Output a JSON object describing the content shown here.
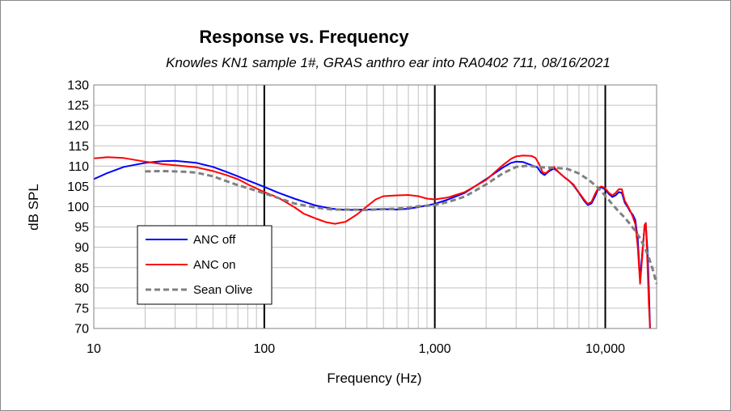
{
  "chart_data": {
    "type": "line",
    "title": "Response vs. Frequency",
    "subtitle": "Knowles KN1 sample 1#, GRAS anthro ear into RA0402 711, 08/16/2021",
    "xlabel": "Frequency (Hz)",
    "ylabel": "dB SPL",
    "xscale": "log",
    "xlim": [
      10,
      20000
    ],
    "ylim": [
      70,
      130
    ],
    "x_ticks": [
      {
        "value": 10,
        "label": "10"
      },
      {
        "value": 100,
        "label": "100"
      },
      {
        "value": 1000,
        "label": "1,000"
      },
      {
        "value": 10000,
        "label": "10,000"
      }
    ],
    "y_ticks": [
      {
        "value": 70,
        "label": "70"
      },
      {
        "value": 75,
        "label": "75"
      },
      {
        "value": 80,
        "label": "80"
      },
      {
        "value": 85,
        "label": "85"
      },
      {
        "value": 90,
        "label": "90"
      },
      {
        "value": 95,
        "label": "95"
      },
      {
        "value": 100,
        "label": "100"
      },
      {
        "value": 105,
        "label": "105"
      },
      {
        "value": 110,
        "label": "110"
      },
      {
        "value": 115,
        "label": "115"
      },
      {
        "value": 120,
        "label": "120"
      },
      {
        "value": 125,
        "label": "125"
      },
      {
        "value": 130,
        "label": "130"
      }
    ],
    "grid": true,
    "legend_position": "lower-left",
    "series": [
      {
        "name": "ANC off",
        "color": "#0000ff",
        "dash": "solid",
        "points": [
          [
            10,
            106.8
          ],
          [
            12,
            108.3
          ],
          [
            15,
            109.8
          ],
          [
            20,
            110.8
          ],
          [
            25,
            111.2
          ],
          [
            30,
            111.3
          ],
          [
            40,
            110.8
          ],
          [
            50,
            109.8
          ],
          [
            60,
            108.6
          ],
          [
            70,
            107.5
          ],
          [
            80,
            106.5
          ],
          [
            100,
            104.9
          ],
          [
            120,
            103.5
          ],
          [
            150,
            102
          ],
          [
            200,
            100.3
          ],
          [
            250,
            99.5
          ],
          [
            300,
            99.2
          ],
          [
            400,
            99.3
          ],
          [
            500,
            99.4
          ],
          [
            600,
            99.3
          ],
          [
            700,
            99.5
          ],
          [
            800,
            99.9
          ],
          [
            1000,
            100.7
          ],
          [
            1200,
            101.8
          ],
          [
            1500,
            103.4
          ],
          [
            2000,
            106.8
          ],
          [
            2500,
            109.6
          ],
          [
            2800,
            110.8
          ],
          [
            3000,
            111.1
          ],
          [
            3300,
            111
          ],
          [
            3600,
            110.4
          ],
          [
            4000,
            109.7
          ],
          [
            4200,
            108.4
          ],
          [
            4400,
            107.8
          ],
          [
            4700,
            108.8
          ],
          [
            5000,
            109.4
          ],
          [
            5300,
            108.6
          ],
          [
            5700,
            107.4
          ],
          [
            6100,
            106.5
          ],
          [
            6500,
            105.3
          ],
          [
            7000,
            103.4
          ],
          [
            7500,
            101.5
          ],
          [
            7900,
            100.4
          ],
          [
            8300,
            100.8
          ],
          [
            8700,
            102.5
          ],
          [
            9100,
            104.4
          ],
          [
            9500,
            104.8
          ],
          [
            10000,
            104.2
          ],
          [
            10500,
            103.1
          ],
          [
            11000,
            102.4
          ],
          [
            11500,
            102.8
          ],
          [
            12000,
            103.6
          ],
          [
            12500,
            103.4
          ],
          [
            13000,
            101
          ],
          [
            13500,
            100
          ],
          [
            14000,
            98.8
          ],
          [
            14500,
            98
          ],
          [
            15000,
            96.7
          ],
          [
            15500,
            92
          ],
          [
            16000,
            82
          ],
          [
            16500,
            89
          ],
          [
            17000,
            95
          ],
          [
            17300,
            95.5
          ],
          [
            17700,
            89
          ],
          [
            18000,
            80
          ],
          [
            18300,
            70
          ]
        ]
      },
      {
        "name": "ANC on",
        "color": "#ff0000",
        "dash": "solid",
        "points": [
          [
            10,
            111.9
          ],
          [
            12,
            112.2
          ],
          [
            15,
            112
          ],
          [
            20,
            111.1
          ],
          [
            25,
            110.5
          ],
          [
            30,
            110.2
          ],
          [
            40,
            109.7
          ],
          [
            50,
            108.8
          ],
          [
            60,
            107.8
          ],
          [
            70,
            106.8
          ],
          [
            80,
            105.5
          ],
          [
            100,
            103.6
          ],
          [
            120,
            102.3
          ],
          [
            150,
            99.9
          ],
          [
            170,
            98.3
          ],
          [
            200,
            97.1
          ],
          [
            230,
            96.2
          ],
          [
            260,
            95.8
          ],
          [
            300,
            96.3
          ],
          [
            350,
            98.1
          ],
          [
            400,
            100.1
          ],
          [
            450,
            101.8
          ],
          [
            500,
            102.6
          ],
          [
            600,
            102.8
          ],
          [
            700,
            102.9
          ],
          [
            800,
            102.6
          ],
          [
            900,
            102
          ],
          [
            1000,
            101.8
          ],
          [
            1200,
            102.3
          ],
          [
            1500,
            103.6
          ],
          [
            2000,
            106.6
          ],
          [
            2500,
            110.2
          ],
          [
            2800,
            111.8
          ],
          [
            3000,
            112.4
          ],
          [
            3300,
            112.6
          ],
          [
            3700,
            112.5
          ],
          [
            3900,
            112
          ],
          [
            4100,
            110.4
          ],
          [
            4300,
            108.4
          ],
          [
            4500,
            108.3
          ],
          [
            4800,
            109.4
          ],
          [
            5000,
            109.8
          ],
          [
            5300,
            108.6
          ],
          [
            5700,
            107.4
          ],
          [
            6100,
            106.4
          ],
          [
            6500,
            105.5
          ],
          [
            7000,
            103.5
          ],
          [
            7500,
            101.8
          ],
          [
            7900,
            100.7
          ],
          [
            8300,
            101.2
          ],
          [
            8700,
            103.1
          ],
          [
            9100,
            104.6
          ],
          [
            9500,
            105
          ],
          [
            10000,
            104.5
          ],
          [
            10500,
            103.4
          ],
          [
            11000,
            102.8
          ],
          [
            11500,
            103.4
          ],
          [
            12000,
            104.3
          ],
          [
            12500,
            104.3
          ],
          [
            13000,
            101.5
          ],
          [
            13500,
            100.3
          ],
          [
            14000,
            99
          ],
          [
            14500,
            97.5
          ],
          [
            15000,
            95.7
          ],
          [
            15500,
            90
          ],
          [
            16000,
            81
          ],
          [
            16500,
            88
          ],
          [
            17000,
            95.5
          ],
          [
            17300,
            96
          ],
          [
            17600,
            88
          ],
          [
            18000,
            76
          ],
          [
            18300,
            70
          ]
        ]
      },
      {
        "name": "Sean Olive",
        "color": "#808080",
        "dash": "dashed",
        "points": [
          [
            20,
            108.7
          ],
          [
            25,
            108.8
          ],
          [
            30,
            108.7
          ],
          [
            35,
            108.6
          ],
          [
            40,
            108.4
          ],
          [
            50,
            107.5
          ],
          [
            60,
            106.3
          ],
          [
            70,
            105.3
          ],
          [
            80,
            104.6
          ],
          [
            100,
            103.3
          ],
          [
            120,
            102.2
          ],
          [
            150,
            100.8
          ],
          [
            200,
            99.8
          ],
          [
            250,
            99.3
          ],
          [
            300,
            99.3
          ],
          [
            400,
            99.2
          ],
          [
            500,
            99.4
          ],
          [
            600,
            99.5
          ],
          [
            700,
            99.8
          ],
          [
            800,
            100.1
          ],
          [
            1000,
            100.4
          ],
          [
            1200,
            101.2
          ],
          [
            1500,
            102.5
          ],
          [
            2000,
            105.5
          ],
          [
            2500,
            108.2
          ],
          [
            3000,
            109.8
          ],
          [
            3500,
            110.1
          ],
          [
            4000,
            109.8
          ],
          [
            4500,
            109.6
          ],
          [
            5000,
            109.6
          ],
          [
            6000,
            109.3
          ],
          [
            7000,
            108.2
          ],
          [
            8000,
            106.6
          ],
          [
            9000,
            104.8
          ],
          [
            10000,
            102.7
          ],
          [
            11000,
            100.6
          ],
          [
            12000,
            98.8
          ],
          [
            13000,
            97.3
          ],
          [
            14000,
            95.7
          ],
          [
            15000,
            94
          ],
          [
            16000,
            92.2
          ],
          [
            17000,
            90
          ],
          [
            18000,
            87.5
          ],
          [
            19000,
            84.5
          ],
          [
            20000,
            81
          ]
        ]
      }
    ]
  }
}
